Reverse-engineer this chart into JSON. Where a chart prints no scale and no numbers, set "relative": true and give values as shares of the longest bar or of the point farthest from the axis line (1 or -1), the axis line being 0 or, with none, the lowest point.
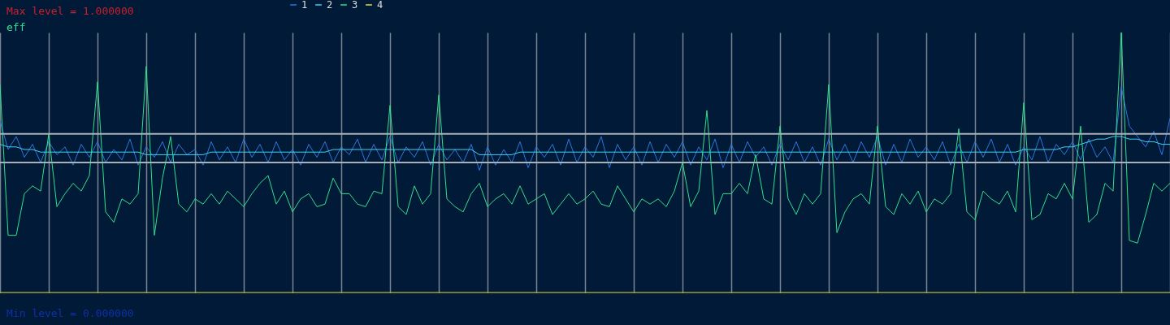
{
  "chart_data": {
    "type": "line",
    "title": "eff",
    "annotations": [
      "Max level = 1.000000",
      "Min level = 0.000000"
    ],
    "relative": true,
    "grid": "x",
    "legend": "top",
    "tick_labels": false,
    "categories": [
      null,
      null,
      null,
      null,
      null,
      null,
      null,
      null,
      null,
      null,
      null,
      null,
      null,
      null,
      null,
      null,
      null,
      null,
      null,
      null,
      null,
      null,
      null,
      null,
      null,
      null,
      null,
      null,
      null,
      null,
      null,
      null,
      null,
      null,
      null,
      null,
      null,
      null,
      null,
      null,
      null,
      null,
      null,
      null,
      null,
      null,
      null,
      null,
      null,
      null,
      null,
      null,
      null,
      null,
      null,
      null,
      null,
      null,
      null,
      null,
      null,
      null,
      null,
      null,
      null,
      null,
      null,
      null,
      null,
      null,
      null,
      null,
      null,
      null,
      null,
      null,
      null,
      null,
      null,
      null,
      null,
      null,
      null,
      null,
      null,
      null,
      null,
      null,
      null,
      null,
      null,
      null,
      null,
      null,
      null,
      null,
      null,
      null,
      null,
      null,
      null,
      null,
      null,
      null,
      null,
      null,
      null,
      null,
      null,
      null,
      null,
      null,
      null,
      null,
      null,
      null,
      null,
      null,
      null,
      null,
      null,
      null,
      null,
      null,
      null,
      null,
      null,
      null,
      null,
      null,
      null,
      null,
      null,
      null,
      null,
      null,
      null,
      null,
      null,
      null,
      null,
      null,
      null,
      null,
      null
    ],
    "ref_lines": [
      {
        "axis": "y",
        "value": 0.61,
        "color": "#a8b0b8"
      },
      {
        "axis": "y",
        "value": 0.5,
        "color": "#a8b0b8"
      }
    ],
    "series": [
      {
        "name": "1",
        "color": "#2a78e0",
        "values": [
          0.66,
          0.55,
          0.6,
          0.52,
          0.57,
          0.5,
          0.58,
          0.53,
          0.56,
          0.49,
          0.57,
          0.52,
          0.58,
          0.5,
          0.55,
          0.51,
          0.59,
          0.49,
          0.56,
          0.52,
          0.58,
          0.5,
          0.57,
          0.53,
          0.55,
          0.49,
          0.58,
          0.51,
          0.56,
          0.5,
          0.59,
          0.52,
          0.57,
          0.5,
          0.58,
          0.51,
          0.55,
          0.49,
          0.57,
          0.52,
          0.58,
          0.5,
          0.56,
          0.53,
          0.59,
          0.5,
          0.57,
          0.51,
          0.6,
          0.5,
          0.56,
          0.52,
          0.58,
          0.49,
          0.57,
          0.51,
          0.55,
          0.5,
          0.57,
          0.47,
          0.56,
          0.49,
          0.55,
          0.5,
          0.58,
          0.48,
          0.56,
          0.52,
          0.57,
          0.49,
          0.59,
          0.5,
          0.56,
          0.52,
          0.6,
          0.48,
          0.57,
          0.51,
          0.56,
          0.49,
          0.58,
          0.5,
          0.57,
          0.52,
          0.58,
          0.49,
          0.56,
          0.51,
          0.59,
          0.48,
          0.57,
          0.5,
          0.58,
          0.52,
          0.56,
          0.49,
          0.57,
          0.51,
          0.58,
          0.5,
          0.56,
          0.49,
          0.59,
          0.51,
          0.57,
          0.5,
          0.58,
          0.52,
          0.6,
          0.49,
          0.57,
          0.5,
          0.59,
          0.52,
          0.56,
          0.51,
          0.58,
          0.49,
          0.57,
          0.5,
          0.58,
          0.52,
          0.59,
          0.5,
          0.57,
          0.49,
          0.56,
          0.51,
          0.6,
          0.5,
          0.57,
          0.53,
          0.58,
          0.51,
          0.59,
          0.52,
          0.56,
          0.5,
          0.79,
          0.64,
          0.6,
          0.56,
          0.62,
          0.53,
          0.67
        ]
      },
      {
        "name": "2",
        "color": "#40d0f0",
        "values": [
          0.57,
          0.56,
          0.56,
          0.55,
          0.55,
          0.54,
          0.54,
          0.54,
          0.54,
          0.54,
          0.54,
          0.54,
          0.54,
          0.54,
          0.54,
          0.54,
          0.54,
          0.54,
          0.53,
          0.53,
          0.53,
          0.53,
          0.53,
          0.53,
          0.53,
          0.53,
          0.54,
          0.54,
          0.54,
          0.54,
          0.54,
          0.54,
          0.54,
          0.54,
          0.54,
          0.54,
          0.54,
          0.54,
          0.54,
          0.54,
          0.54,
          0.55,
          0.55,
          0.55,
          0.55,
          0.55,
          0.55,
          0.55,
          0.55,
          0.55,
          0.55,
          0.55,
          0.55,
          0.55,
          0.55,
          0.55,
          0.55,
          0.55,
          0.55,
          0.53,
          0.53,
          0.53,
          0.53,
          0.53,
          0.54,
          0.54,
          0.54,
          0.54,
          0.54,
          0.54,
          0.54,
          0.54,
          0.54,
          0.54,
          0.54,
          0.54,
          0.54,
          0.54,
          0.54,
          0.54,
          0.54,
          0.54,
          0.54,
          0.54,
          0.54,
          0.54,
          0.54,
          0.54,
          0.54,
          0.54,
          0.54,
          0.54,
          0.54,
          0.54,
          0.54,
          0.54,
          0.54,
          0.54,
          0.54,
          0.54,
          0.54,
          0.54,
          0.54,
          0.54,
          0.54,
          0.54,
          0.54,
          0.54,
          0.54,
          0.54,
          0.54,
          0.54,
          0.54,
          0.54,
          0.54,
          0.54,
          0.54,
          0.54,
          0.54,
          0.54,
          0.54,
          0.54,
          0.54,
          0.54,
          0.54,
          0.54,
          0.55,
          0.55,
          0.55,
          0.55,
          0.55,
          0.56,
          0.56,
          0.57,
          0.58,
          0.59,
          0.59,
          0.6,
          0.6,
          0.59,
          0.59,
          0.58,
          0.58,
          0.57,
          0.57
        ]
      },
      {
        "name": "3",
        "color": "#30e08c",
        "values": [
          0.8,
          0.22,
          0.22,
          0.38,
          0.41,
          0.39,
          0.61,
          0.33,
          0.38,
          0.42,
          0.39,
          0.45,
          0.81,
          0.31,
          0.27,
          0.36,
          0.34,
          0.38,
          0.87,
          0.22,
          0.44,
          0.6,
          0.34,
          0.31,
          0.36,
          0.34,
          0.38,
          0.34,
          0.39,
          0.36,
          0.33,
          0.38,
          0.42,
          0.45,
          0.34,
          0.39,
          0.31,
          0.36,
          0.38,
          0.33,
          0.34,
          0.44,
          0.38,
          0.38,
          0.34,
          0.33,
          0.39,
          0.38,
          0.72,
          0.33,
          0.3,
          0.41,
          0.34,
          0.38,
          0.76,
          0.36,
          0.33,
          0.31,
          0.38,
          0.42,
          0.33,
          0.36,
          0.38,
          0.34,
          0.41,
          0.34,
          0.36,
          0.38,
          0.3,
          0.34,
          0.38,
          0.34,
          0.36,
          0.39,
          0.34,
          0.33,
          0.41,
          0.36,
          0.31,
          0.36,
          0.34,
          0.36,
          0.33,
          0.39,
          0.5,
          0.33,
          0.39,
          0.7,
          0.3,
          0.38,
          0.38,
          0.42,
          0.38,
          0.53,
          0.36,
          0.34,
          0.64,
          0.36,
          0.3,
          0.38,
          0.34,
          0.38,
          0.8,
          0.23,
          0.31,
          0.36,
          0.38,
          0.34,
          0.64,
          0.33,
          0.3,
          0.38,
          0.34,
          0.39,
          0.31,
          0.36,
          0.34,
          0.38,
          0.63,
          0.31,
          0.28,
          0.39,
          0.36,
          0.34,
          0.39,
          0.31,
          0.73,
          0.28,
          0.3,
          0.38,
          0.36,
          0.42,
          0.36,
          0.64,
          0.27,
          0.3,
          0.42,
          0.39,
          1.0,
          0.2,
          0.19,
          0.3,
          0.42,
          0.39,
          0.42
        ]
      },
      {
        "name": "4",
        "color": "#e8e040",
        "values": [
          0,
          0,
          0,
          0,
          0,
          0,
          0,
          0,
          0,
          0,
          0,
          0,
          0,
          0,
          0,
          0,
          0,
          0,
          0,
          0,
          0,
          0,
          0,
          0,
          0,
          0,
          0,
          0,
          0,
          0,
          0,
          0,
          0,
          0,
          0,
          0,
          0,
          0,
          0,
          0,
          0,
          0,
          0,
          0,
          0,
          0,
          0,
          0,
          0,
          0,
          0,
          0,
          0,
          0,
          0,
          0,
          0,
          0,
          0,
          0,
          0,
          0,
          0,
          0,
          0,
          0,
          0,
          0,
          0,
          0,
          0,
          0,
          0,
          0,
          0,
          0,
          0,
          0,
          0,
          0,
          0,
          0,
          0,
          0,
          0,
          0,
          0,
          0,
          0,
          0,
          0,
          0,
          0,
          0,
          0,
          0,
          0,
          0,
          0,
          0,
          0,
          0,
          0,
          0,
          0,
          0,
          0,
          0,
          0,
          0,
          0,
          0,
          0,
          0,
          0,
          0,
          0,
          0,
          0,
          0,
          0,
          0,
          0,
          0,
          0,
          0,
          0,
          0,
          0,
          0,
          0,
          0,
          0,
          0,
          0,
          0,
          0,
          0,
          0,
          0,
          0,
          0,
          0,
          0,
          0
        ]
      }
    ]
  }
}
